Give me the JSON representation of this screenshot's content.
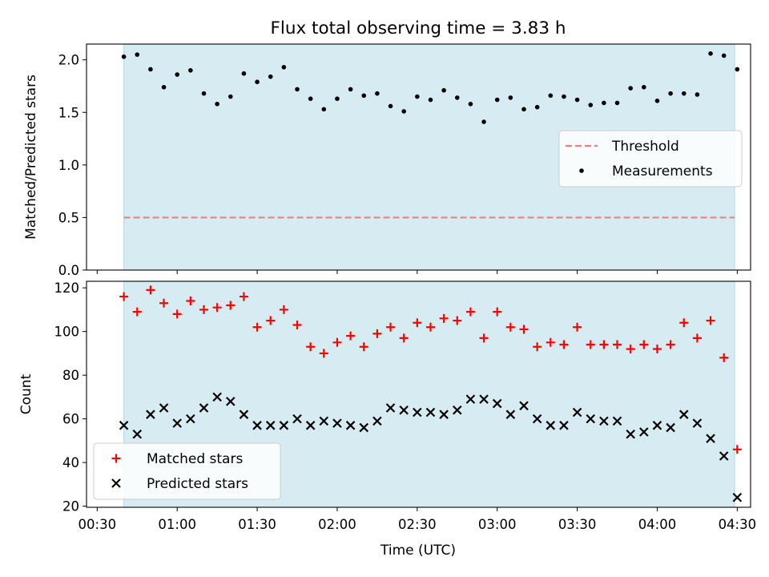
{
  "figure": {
    "title": "Flux total observing time = 3.83 h",
    "xlabel": "Time (UTC)"
  },
  "colors": {
    "shade": "#add8e6",
    "threshold": "#f08080",
    "measurements": "#000000",
    "matched": "#ff0000",
    "predicted": "#000000"
  },
  "chart_data": [
    {
      "type": "scatter",
      "ylabel": "Matched/Predicted stars",
      "xlim": [
        "00:26",
        "04:35"
      ],
      "ylim": [
        0,
        2.15
      ],
      "x_ticks": [
        "00:30",
        "01:00",
        "01:30",
        "02:00",
        "02:30",
        "03:00",
        "03:30",
        "04:00",
        "04:30"
      ],
      "x_tick_labels_shown": false,
      "y_ticks": [
        "0.0",
        "0.5",
        "1.0",
        "1.5",
        "2.0"
      ],
      "shaded_span": [
        "00:40",
        "04:29"
      ],
      "legend_position": "center-right",
      "threshold": {
        "name": "Threshold",
        "value": 0.5,
        "style": "dashed"
      },
      "series": [
        {
          "name": "Measurements",
          "marker": "dot",
          "x": [
            "00:40",
            "00:45",
            "00:50",
            "00:55",
            "01:00",
            "01:05",
            "01:10",
            "01:15",
            "01:20",
            "01:25",
            "01:30",
            "01:35",
            "01:40",
            "01:45",
            "01:50",
            "01:55",
            "02:00",
            "02:05",
            "02:10",
            "02:15",
            "02:20",
            "02:25",
            "02:30",
            "02:35",
            "02:40",
            "02:45",
            "02:50",
            "02:55",
            "03:00",
            "03:05",
            "03:10",
            "03:15",
            "03:20",
            "03:25",
            "03:30",
            "03:35",
            "03:40",
            "03:45",
            "03:50",
            "03:55",
            "04:00",
            "04:05",
            "04:10",
            "04:15",
            "04:20",
            "04:25",
            "04:30"
          ],
          "y": [
            2.03,
            2.05,
            1.91,
            1.74,
            1.86,
            1.9,
            1.68,
            1.58,
            1.65,
            1.87,
            1.79,
            1.84,
            1.93,
            1.72,
            1.63,
            1.53,
            1.63,
            1.72,
            1.66,
            1.68,
            1.56,
            1.51,
            1.65,
            1.62,
            1.71,
            1.64,
            1.58,
            1.41,
            1.62,
            1.64,
            1.53,
            1.55,
            1.66,
            1.65,
            1.62,
            1.57,
            1.59,
            1.59,
            1.73,
            1.74,
            1.61,
            1.68,
            1.68,
            1.67,
            2.06,
            2.04,
            1.91
          ]
        }
      ]
    },
    {
      "type": "scatter",
      "ylabel": "Count",
      "xlabel": "Time (UTC)",
      "xlim": [
        "00:26",
        "04:35"
      ],
      "ylim": [
        19.5,
        123
      ],
      "x_ticks": [
        "00:30",
        "01:00",
        "01:30",
        "02:00",
        "02:30",
        "03:00",
        "03:30",
        "04:00",
        "04:30"
      ],
      "y_ticks": [
        "20",
        "40",
        "60",
        "80",
        "100",
        "120"
      ],
      "shaded_span": [
        "00:40",
        "04:29"
      ],
      "legend_position": "lower-left",
      "series": [
        {
          "name": "Matched stars",
          "marker": "plus",
          "x": [
            "00:40",
            "00:45",
            "00:50",
            "00:55",
            "01:00",
            "01:05",
            "01:10",
            "01:15",
            "01:20",
            "01:25",
            "01:30",
            "01:35",
            "01:40",
            "01:45",
            "01:50",
            "01:55",
            "02:00",
            "02:05",
            "02:10",
            "02:15",
            "02:20",
            "02:25",
            "02:30",
            "02:35",
            "02:40",
            "02:45",
            "02:50",
            "02:55",
            "03:00",
            "03:05",
            "03:10",
            "03:15",
            "03:20",
            "03:25",
            "03:30",
            "03:35",
            "03:40",
            "03:45",
            "03:50",
            "03:55",
            "04:00",
            "04:05",
            "04:10",
            "04:15",
            "04:20",
            "04:25",
            "04:30"
          ],
          "y": [
            116,
            109,
            119,
            113,
            108,
            114,
            110,
            111,
            112,
            116,
            102,
            105,
            110,
            103,
            93,
            90,
            95,
            98,
            93,
            99,
            102,
            97,
            104,
            102,
            106,
            105,
            109,
            97,
            109,
            102,
            101,
            93,
            95,
            94,
            102,
            94,
            94,
            94,
            92,
            94,
            92,
            94,
            104,
            97,
            105,
            88,
            46
          ]
        },
        {
          "name": "Predicted stars",
          "marker": "x",
          "x": [
            "00:40",
            "00:45",
            "00:50",
            "00:55",
            "01:00",
            "01:05",
            "01:10",
            "01:15",
            "01:20",
            "01:25",
            "01:30",
            "01:35",
            "01:40",
            "01:45",
            "01:50",
            "01:55",
            "02:00",
            "02:05",
            "02:10",
            "02:15",
            "02:20",
            "02:25",
            "02:30",
            "02:35",
            "02:40",
            "02:45",
            "02:50",
            "02:55",
            "03:00",
            "03:05",
            "03:10",
            "03:15",
            "03:20",
            "03:25",
            "03:30",
            "03:35",
            "03:40",
            "03:45",
            "03:50",
            "03:55",
            "04:00",
            "04:05",
            "04:10",
            "04:15",
            "04:20",
            "04:25",
            "04:30"
          ],
          "y": [
            57,
            53,
            62,
            65,
            58,
            60,
            65,
            70,
            68,
            62,
            57,
            57,
            57,
            60,
            57,
            59,
            58,
            57,
            56,
            59,
            65,
            64,
            63,
            63,
            62,
            64,
            69,
            69,
            67,
            62,
            66,
            60,
            57,
            57,
            63,
            60,
            59,
            59,
            53,
            54,
            57,
            56,
            62,
            58,
            51,
            43,
            24
          ]
        }
      ]
    }
  ]
}
